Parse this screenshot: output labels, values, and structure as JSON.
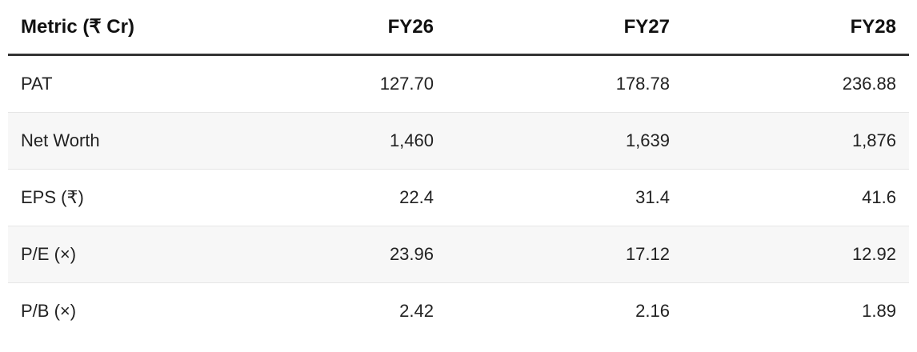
{
  "table": {
    "headers": [
      "Metric (₹ Cr)",
      "FY26",
      "FY27",
      "FY28"
    ],
    "rows": [
      [
        "PAT",
        "127.70",
        "178.78",
        "236.88"
      ],
      [
        "Net Worth",
        "1,460",
        "1,639",
        "1,876"
      ],
      [
        "EPS (₹)",
        "22.4",
        "31.4",
        "41.6"
      ],
      [
        "P/E (×)",
        "23.96",
        "17.12",
        "12.92"
      ],
      [
        "P/B (×)",
        "2.42",
        "2.16",
        "1.89"
      ]
    ]
  }
}
